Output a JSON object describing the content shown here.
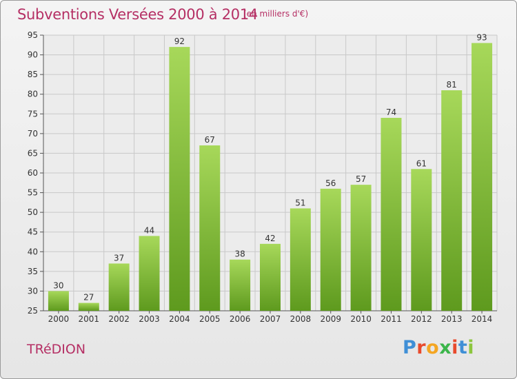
{
  "header": {
    "title": "Subventions Versées 2000 à 2014",
    "subtitle": "(en milliers d'€)"
  },
  "commune": "TRéDION",
  "logo": {
    "letters": [
      "P",
      "r",
      "o",
      "x",
      "i",
      "t",
      "i"
    ],
    "colors": [
      "#3f8fd6",
      "#e84a2c",
      "#f4a623",
      "#3bb54a",
      "#e84a2c",
      "#3f8fd6",
      "#8cc63e"
    ]
  },
  "colors": {
    "bar_light": "#a7d85a",
    "bar_dark": "#5e9a1e",
    "text_accent": "#b52f64",
    "grid": "#c8c8c8"
  },
  "chart_data": {
    "type": "bar",
    "categories": [
      "2000",
      "2001",
      "2002",
      "2003",
      "2004",
      "2005",
      "2006",
      "2007",
      "2008",
      "2009",
      "2010",
      "2011",
      "2012",
      "2013",
      "2014"
    ],
    "values": [
      30,
      27,
      37,
      44,
      92,
      67,
      38,
      42,
      51,
      56,
      57,
      74,
      61,
      81,
      93
    ],
    "ylim": [
      25,
      95
    ],
    "yticks": [
      25,
      30,
      35,
      40,
      45,
      50,
      55,
      60,
      65,
      70,
      75,
      80,
      85,
      90,
      95
    ],
    "grid": true,
    "legend": "none"
  }
}
